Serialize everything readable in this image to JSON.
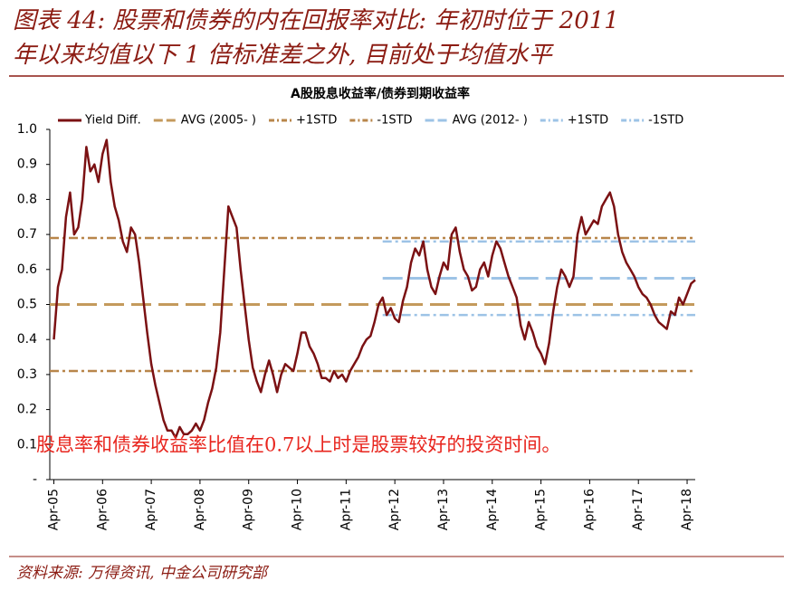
{
  "figure_title": [
    "图表 44: 股票和债券的内在回报率对比: 年初时位于 2011",
    "年以来均值以下 1 倍标准差之外, 目前处于均值水平"
  ],
  "source": "资料来源: 万得资讯, 中金公司研究部",
  "chart_data": {
    "type": "line",
    "title": "A股股息收益率/债券到期收益率",
    "annotation": "股息率和债券收益率比值在0.7以上时是股票较好的投资时间。",
    "x": [
      "2005-04",
      "2005-05",
      "2005-06",
      "2005-07",
      "2005-08",
      "2005-09",
      "2005-10",
      "2005-11",
      "2005-12",
      "2006-01",
      "2006-02",
      "2006-03",
      "2006-04",
      "2006-05",
      "2006-06",
      "2006-07",
      "2006-08",
      "2006-09",
      "2006-10",
      "2006-11",
      "2006-12",
      "2007-01",
      "2007-02",
      "2007-03",
      "2007-04",
      "2007-05",
      "2007-06",
      "2007-07",
      "2007-08",
      "2007-09",
      "2007-10",
      "2007-11",
      "2007-12",
      "2008-01",
      "2008-02",
      "2008-03",
      "2008-04",
      "2008-05",
      "2008-06",
      "2008-07",
      "2008-08",
      "2008-09",
      "2008-10",
      "2008-11",
      "2008-12",
      "2009-01",
      "2009-02",
      "2009-03",
      "2009-04",
      "2009-05",
      "2009-06",
      "2009-07",
      "2009-08",
      "2009-09",
      "2009-10",
      "2009-11",
      "2009-12",
      "2010-01",
      "2010-02",
      "2010-03",
      "2010-04",
      "2010-05",
      "2010-06",
      "2010-07",
      "2010-08",
      "2010-09",
      "2010-10",
      "2010-11",
      "2010-12",
      "2011-01",
      "2011-02",
      "2011-03",
      "2011-04",
      "2011-05",
      "2011-06",
      "2011-07",
      "2011-08",
      "2011-09",
      "2011-10",
      "2011-11",
      "2011-12",
      "2012-01",
      "2012-02",
      "2012-03",
      "2012-04",
      "2012-05",
      "2012-06",
      "2012-07",
      "2012-08",
      "2012-09",
      "2012-10",
      "2012-11",
      "2012-12",
      "2013-01",
      "2013-02",
      "2013-03",
      "2013-04",
      "2013-05",
      "2013-06",
      "2013-07",
      "2013-08",
      "2013-09",
      "2013-10",
      "2013-11",
      "2013-12",
      "2014-01",
      "2014-02",
      "2014-03",
      "2014-04",
      "2014-05",
      "2014-06",
      "2014-07",
      "2014-08",
      "2014-09",
      "2014-10",
      "2014-11",
      "2014-12",
      "2015-01",
      "2015-02",
      "2015-03",
      "2015-04",
      "2015-05",
      "2015-06",
      "2015-07",
      "2015-08",
      "2015-09",
      "2015-10",
      "2015-11",
      "2015-12",
      "2016-01",
      "2016-02",
      "2016-03",
      "2016-04",
      "2016-05",
      "2016-06",
      "2016-07",
      "2016-08",
      "2016-09",
      "2016-10",
      "2016-11",
      "2016-12",
      "2017-01",
      "2017-02",
      "2017-03",
      "2017-04",
      "2017-05",
      "2017-06",
      "2017-07",
      "2017-08",
      "2017-09",
      "2017-10",
      "2017-11",
      "2017-12",
      "2018-01",
      "2018-02",
      "2018-03",
      "2018-04",
      "2018-05",
      "2018-06"
    ],
    "series": [
      {
        "name": "Yield Diff.",
        "color": "#7b1113",
        "values": [
          0.4,
          0.55,
          0.6,
          0.75,
          0.82,
          0.7,
          0.72,
          0.8,
          0.95,
          0.88,
          0.9,
          0.85,
          0.93,
          0.97,
          0.85,
          0.78,
          0.74,
          0.68,
          0.65,
          0.72,
          0.7,
          0.62,
          0.52,
          0.42,
          0.33,
          0.27,
          0.22,
          0.17,
          0.14,
          0.14,
          0.12,
          0.15,
          0.13,
          0.13,
          0.14,
          0.16,
          0.14,
          0.17,
          0.22,
          0.26,
          0.32,
          0.42,
          0.6,
          0.78,
          0.75,
          0.72,
          0.6,
          0.5,
          0.4,
          0.32,
          0.28,
          0.25,
          0.3,
          0.34,
          0.3,
          0.25,
          0.3,
          0.33,
          0.32,
          0.31,
          0.36,
          0.42,
          0.42,
          0.38,
          0.36,
          0.33,
          0.29,
          0.29,
          0.28,
          0.31,
          0.29,
          0.3,
          0.28,
          0.31,
          0.33,
          0.35,
          0.38,
          0.4,
          0.41,
          0.45,
          0.5,
          0.52,
          0.47,
          0.49,
          0.46,
          0.45,
          0.51,
          0.55,
          0.62,
          0.66,
          0.64,
          0.68,
          0.6,
          0.55,
          0.53,
          0.58,
          0.62,
          0.6,
          0.7,
          0.72,
          0.65,
          0.6,
          0.58,
          0.54,
          0.55,
          0.6,
          0.62,
          0.58,
          0.64,
          0.68,
          0.66,
          0.62,
          0.58,
          0.55,
          0.52,
          0.44,
          0.4,
          0.45,
          0.42,
          0.38,
          0.36,
          0.33,
          0.39,
          0.48,
          0.55,
          0.6,
          0.58,
          0.55,
          0.58,
          0.7,
          0.75,
          0.7,
          0.72,
          0.74,
          0.73,
          0.78,
          0.8,
          0.82,
          0.78,
          0.7,
          0.65,
          0.62,
          0.6,
          0.58,
          0.55,
          0.53,
          0.52,
          0.5,
          0.47,
          0.45,
          0.44,
          0.43,
          0.48,
          0.47,
          0.52,
          0.5,
          0.53,
          0.56,
          0.57
        ]
      }
    ],
    "reference_lines": [
      {
        "name": "AVG (2005- )",
        "color": "#c49a5c",
        "value": 0.5,
        "from": "2005-03",
        "to": "2018-06",
        "dash": "long"
      },
      {
        "name": "+1STD",
        "color": "#b8864a",
        "value": 0.69,
        "from": "2005-03",
        "to": "2018-06",
        "dash": "dashdot"
      },
      {
        "name": "-1STD",
        "color": "#b8864a",
        "value": 0.31,
        "from": "2005-03",
        "to": "2018-06",
        "dash": "dashdot"
      },
      {
        "name": "AVG (2012- )",
        "color": "#9dc3e6",
        "value": 0.575,
        "from": "2012-01",
        "to": "2018-06",
        "dash": "long"
      },
      {
        "name": "+1STD",
        "color": "#9dc3e6",
        "value": 0.68,
        "from": "2012-01",
        "to": "2018-06",
        "dash": "dashdot"
      },
      {
        "name": "-1STD",
        "color": "#9dc3e6",
        "value": 0.47,
        "from": "2012-01",
        "to": "2018-06",
        "dash": "dashdot"
      }
    ],
    "xlim": [
      "2005-03",
      "2018-06"
    ],
    "xticks": [
      {
        "value": "2005-04",
        "label": "Apr-05"
      },
      {
        "value": "2006-04",
        "label": "Apr-06"
      },
      {
        "value": "2007-04",
        "label": "Apr-07"
      },
      {
        "value": "2008-04",
        "label": "Apr-08"
      },
      {
        "value": "2009-04",
        "label": "Apr-09"
      },
      {
        "value": "2010-04",
        "label": "Apr-10"
      },
      {
        "value": "2011-04",
        "label": "Apr-11"
      },
      {
        "value": "2012-04",
        "label": "Apr-12"
      },
      {
        "value": "2013-04",
        "label": "Apr-13"
      },
      {
        "value": "2014-04",
        "label": "Apr-14"
      },
      {
        "value": "2015-04",
        "label": "Apr-15"
      },
      {
        "value": "2016-04",
        "label": "Apr-16"
      },
      {
        "value": "2017-04",
        "label": "Apr-17"
      },
      {
        "value": "2018-04",
        "label": "Apr-18"
      }
    ],
    "ylim": [
      0,
      1
    ],
    "yticks": [
      {
        "value": 0,
        "label": "-"
      },
      0.1,
      0.2,
      0.3,
      0.4,
      0.5,
      0.6,
      0.7,
      0.8,
      0.9,
      {
        "value": 1,
        "label": "1.0"
      }
    ],
    "grid": false
  }
}
